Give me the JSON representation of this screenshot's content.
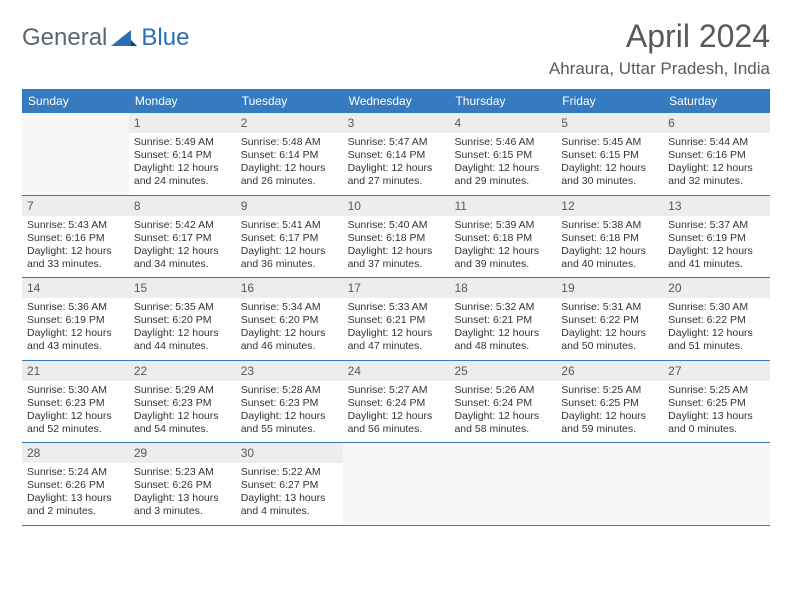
{
  "brand": {
    "part1": "General",
    "part2": "Blue"
  },
  "title": "April 2024",
  "location": "Ahraura, Uttar Pradesh, India",
  "colors": {
    "header_bg": "#367bbf",
    "header_text": "#ffffff",
    "daynum_bg": "#ededed",
    "text": "#333333",
    "muted": "#595959",
    "brand_blue": "#2a6fb5",
    "brand_gray": "#5a6670",
    "empty_bg": "#f7f7f7"
  },
  "weekdays": [
    "Sunday",
    "Monday",
    "Tuesday",
    "Wednesday",
    "Thursday",
    "Friday",
    "Saturday"
  ],
  "weeks": [
    [
      null,
      {
        "n": "1",
        "sr": "5:49 AM",
        "ss": "6:14 PM",
        "dl1": "Daylight: 12 hours",
        "dl2": "and 24 minutes."
      },
      {
        "n": "2",
        "sr": "5:48 AM",
        "ss": "6:14 PM",
        "dl1": "Daylight: 12 hours",
        "dl2": "and 26 minutes."
      },
      {
        "n": "3",
        "sr": "5:47 AM",
        "ss": "6:14 PM",
        "dl1": "Daylight: 12 hours",
        "dl2": "and 27 minutes."
      },
      {
        "n": "4",
        "sr": "5:46 AM",
        "ss": "6:15 PM",
        "dl1": "Daylight: 12 hours",
        "dl2": "and 29 minutes."
      },
      {
        "n": "5",
        "sr": "5:45 AM",
        "ss": "6:15 PM",
        "dl1": "Daylight: 12 hours",
        "dl2": "and 30 minutes."
      },
      {
        "n": "6",
        "sr": "5:44 AM",
        "ss": "6:16 PM",
        "dl1": "Daylight: 12 hours",
        "dl2": "and 32 minutes."
      }
    ],
    [
      {
        "n": "7",
        "sr": "5:43 AM",
        "ss": "6:16 PM",
        "dl1": "Daylight: 12 hours",
        "dl2": "and 33 minutes."
      },
      {
        "n": "8",
        "sr": "5:42 AM",
        "ss": "6:17 PM",
        "dl1": "Daylight: 12 hours",
        "dl2": "and 34 minutes."
      },
      {
        "n": "9",
        "sr": "5:41 AM",
        "ss": "6:17 PM",
        "dl1": "Daylight: 12 hours",
        "dl2": "and 36 minutes."
      },
      {
        "n": "10",
        "sr": "5:40 AM",
        "ss": "6:18 PM",
        "dl1": "Daylight: 12 hours",
        "dl2": "and 37 minutes."
      },
      {
        "n": "11",
        "sr": "5:39 AM",
        "ss": "6:18 PM",
        "dl1": "Daylight: 12 hours",
        "dl2": "and 39 minutes."
      },
      {
        "n": "12",
        "sr": "5:38 AM",
        "ss": "6:18 PM",
        "dl1": "Daylight: 12 hours",
        "dl2": "and 40 minutes."
      },
      {
        "n": "13",
        "sr": "5:37 AM",
        "ss": "6:19 PM",
        "dl1": "Daylight: 12 hours",
        "dl2": "and 41 minutes."
      }
    ],
    [
      {
        "n": "14",
        "sr": "5:36 AM",
        "ss": "6:19 PM",
        "dl1": "Daylight: 12 hours",
        "dl2": "and 43 minutes."
      },
      {
        "n": "15",
        "sr": "5:35 AM",
        "ss": "6:20 PM",
        "dl1": "Daylight: 12 hours",
        "dl2": "and 44 minutes."
      },
      {
        "n": "16",
        "sr": "5:34 AM",
        "ss": "6:20 PM",
        "dl1": "Daylight: 12 hours",
        "dl2": "and 46 minutes."
      },
      {
        "n": "17",
        "sr": "5:33 AM",
        "ss": "6:21 PM",
        "dl1": "Daylight: 12 hours",
        "dl2": "and 47 minutes."
      },
      {
        "n": "18",
        "sr": "5:32 AM",
        "ss": "6:21 PM",
        "dl1": "Daylight: 12 hours",
        "dl2": "and 48 minutes."
      },
      {
        "n": "19",
        "sr": "5:31 AM",
        "ss": "6:22 PM",
        "dl1": "Daylight: 12 hours",
        "dl2": "and 50 minutes."
      },
      {
        "n": "20",
        "sr": "5:30 AM",
        "ss": "6:22 PM",
        "dl1": "Daylight: 12 hours",
        "dl2": "and 51 minutes."
      }
    ],
    [
      {
        "n": "21",
        "sr": "5:30 AM",
        "ss": "6:23 PM",
        "dl1": "Daylight: 12 hours",
        "dl2": "and 52 minutes."
      },
      {
        "n": "22",
        "sr": "5:29 AM",
        "ss": "6:23 PM",
        "dl1": "Daylight: 12 hours",
        "dl2": "and 54 minutes."
      },
      {
        "n": "23",
        "sr": "5:28 AM",
        "ss": "6:23 PM",
        "dl1": "Daylight: 12 hours",
        "dl2": "and 55 minutes."
      },
      {
        "n": "24",
        "sr": "5:27 AM",
        "ss": "6:24 PM",
        "dl1": "Daylight: 12 hours",
        "dl2": "and 56 minutes."
      },
      {
        "n": "25",
        "sr": "5:26 AM",
        "ss": "6:24 PM",
        "dl1": "Daylight: 12 hours",
        "dl2": "and 58 minutes."
      },
      {
        "n": "26",
        "sr": "5:25 AM",
        "ss": "6:25 PM",
        "dl1": "Daylight: 12 hours",
        "dl2": "and 59 minutes."
      },
      {
        "n": "27",
        "sr": "5:25 AM",
        "ss": "6:25 PM",
        "dl1": "Daylight: 13 hours",
        "dl2": "and 0 minutes."
      }
    ],
    [
      {
        "n": "28",
        "sr": "5:24 AM",
        "ss": "6:26 PM",
        "dl1": "Daylight: 13 hours",
        "dl2": "and 2 minutes."
      },
      {
        "n": "29",
        "sr": "5:23 AM",
        "ss": "6:26 PM",
        "dl1": "Daylight: 13 hours",
        "dl2": "and 3 minutes."
      },
      {
        "n": "30",
        "sr": "5:22 AM",
        "ss": "6:27 PM",
        "dl1": "Daylight: 13 hours",
        "dl2": "and 4 minutes."
      },
      null,
      null,
      null,
      null
    ]
  ]
}
